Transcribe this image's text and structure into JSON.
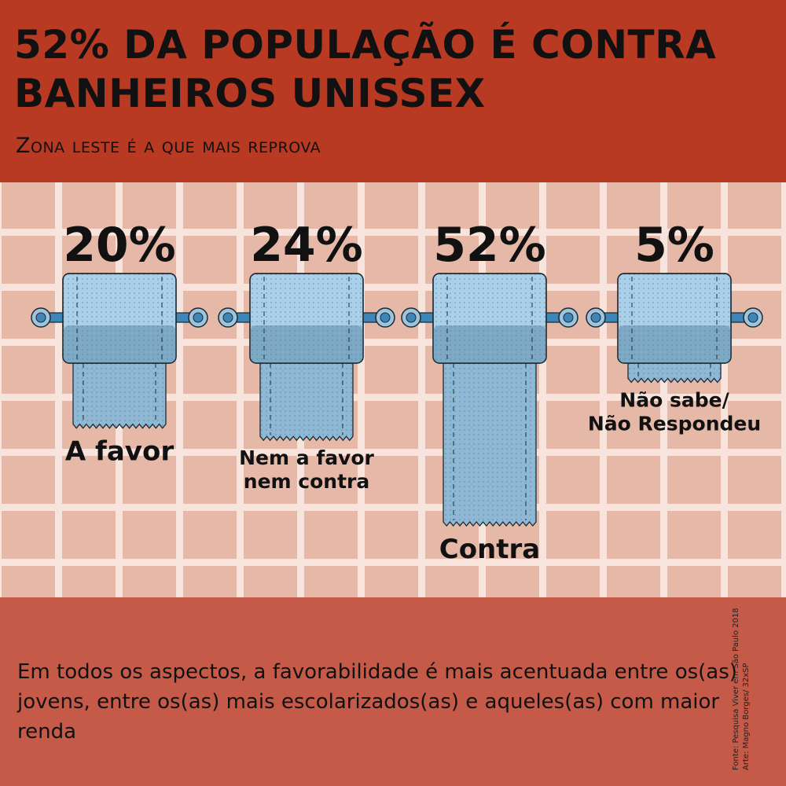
{
  "header": {
    "title": "52% DA POPULAÇÃO É CONTRA BANHEIROS UNISSEX",
    "subtitle": "Zona leste é a que mais reprova"
  },
  "chart_data": {
    "type": "bar",
    "title": "52% DA POPULAÇÃO É CONTRA BANHEIROS UNISSEX",
    "subtitle": "Zona leste é a que mais reprova",
    "categories": [
      "A favor",
      "Nem a favor nem contra",
      "Contra",
      "Não sabe/ Não Respondeu"
    ],
    "category_lines": [
      [
        "A favor"
      ],
      [
        "Nem a favor",
        "nem contra"
      ],
      [
        "Contra"
      ],
      [
        "Não sabe/",
        "Não Respondeu"
      ]
    ],
    "values": [
      20,
      24,
      52,
      5
    ],
    "value_labels": [
      "20%",
      "24%",
      "52%",
      "5%"
    ],
    "unit": "%",
    "ylim": [
      0,
      52
    ],
    "xlabel": "",
    "ylabel": "",
    "grid": false,
    "legend": "none",
    "colors": {
      "paper": "#8fb8d4",
      "roll": "#a9d0e8",
      "roll_dark": "#7ea9c4",
      "bar": "#3f86b8"
    }
  },
  "footer": {
    "note": "Em todos os aspectos, a favorabilidade é mais acentuada entre os(as) jovens, entre os(as) mais escolarizados(as) e aqueles(as) com maior renda",
    "source": "Fonte: Pesquisa Viver em São Paulo 2018",
    "credit": "Arte: Magno Borges/ 32xSP"
  }
}
